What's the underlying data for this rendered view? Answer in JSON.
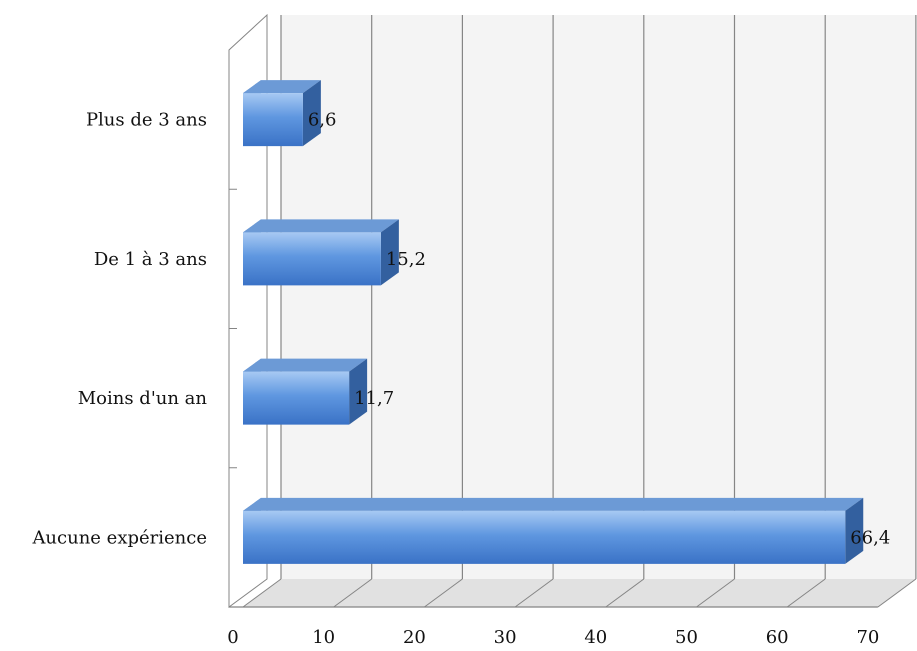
{
  "chart_data": {
    "type": "bar",
    "orientation": "horizontal",
    "categories": [
      "Aucune expérience",
      "Moins d'un an",
      "De 1 à 3 ans",
      "Plus de 3 ans"
    ],
    "values": [
      66.4,
      11.7,
      15.2,
      6.6
    ],
    "data_labels": [
      "66,4",
      "11,7",
      "15,2",
      "6,6"
    ],
    "xlim": [
      0,
      70
    ],
    "x_ticks": [
      0,
      10,
      20,
      30,
      40,
      50,
      60,
      70
    ],
    "x_tick_labels": [
      "0",
      "10",
      "20",
      "30",
      "40",
      "50",
      "60",
      "70"
    ],
    "grid": "vertical",
    "style": "3d",
    "title": "",
    "xlabel": "",
    "ylabel": "",
    "colors": {
      "bar_front_light": "#a7c9f3",
      "bar_front_mid": "#5f97e0",
      "bar_front_dark": "#3a72c6",
      "bar_top": "#6c9ad6",
      "bar_side": "#33609f",
      "gridline": "#858585",
      "floor": "#c9c9c9",
      "wall": "#f4f4f4",
      "text": "#111111"
    }
  }
}
